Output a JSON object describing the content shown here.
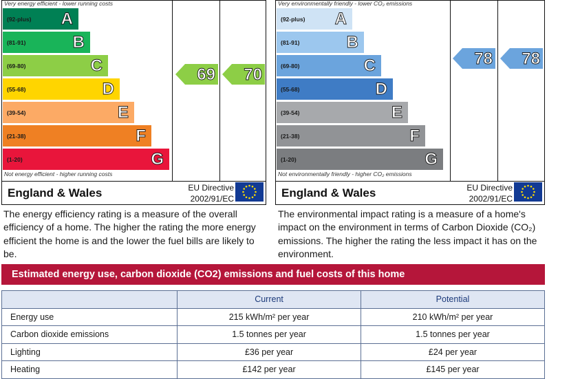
{
  "energy_chart": {
    "top_caption": "Very energy efficient - lower running costs",
    "bottom_caption": "Not energy efficient - higher running costs",
    "bands": [
      {
        "range": "(92-plus)",
        "letter": "A",
        "color": "#008054"
      },
      {
        "range": "(81-91)",
        "letter": "B",
        "color": "#19b459"
      },
      {
        "range": "(69-80)",
        "letter": "C",
        "color": "#8dce46"
      },
      {
        "range": "(55-68)",
        "letter": "D",
        "color": "#ffd500"
      },
      {
        "range": "(39-54)",
        "letter": "E",
        "color": "#fcaa65"
      },
      {
        "range": "(21-38)",
        "letter": "F",
        "color": "#ef8023"
      },
      {
        "range": "(1-20)",
        "letter": "G",
        "color": "#e9153b"
      }
    ],
    "current": {
      "value": "69",
      "band": "C",
      "color": "#8dce46"
    },
    "potential": {
      "value": "70",
      "band": "C",
      "color": "#8dce46"
    },
    "region": "England & Wales",
    "directive_line1": "EU Directive",
    "directive_line2": "2002/91/EC"
  },
  "co2_chart": {
    "top_caption": "Very environmentally friendly - lower CO₂ emissions",
    "bottom_caption": "Not environmentally friendly - higher CO₂ emissions",
    "bands": [
      {
        "range": "(92-plus)",
        "letter": "A",
        "color": "#cfe3f5"
      },
      {
        "range": "(81-91)",
        "letter": "B",
        "color": "#9cc7ee"
      },
      {
        "range": "(69-80)",
        "letter": "C",
        "color": "#6ba4dd"
      },
      {
        "range": "(55-68)",
        "letter": "D",
        "color": "#3f7cc5"
      },
      {
        "range": "(39-54)",
        "letter": "E",
        "color": "#a7a9ac"
      },
      {
        "range": "(21-38)",
        "letter": "F",
        "color": "#919396"
      },
      {
        "range": "(1-20)",
        "letter": "G",
        "color": "#7b7d80"
      }
    ],
    "current": {
      "value": "78",
      "band": "C",
      "color": "#6ba4dd"
    },
    "potential": {
      "value": "78",
      "band": "C",
      "color": "#6ba4dd"
    },
    "region": "England & Wales",
    "directive_line1": "EU Directive",
    "directive_line2": "2002/91/EC"
  },
  "energy_description": "The energy efficiency rating is a measure of the overall efficiency of a home. The higher the rating the more energy efficient the home is and the lower the fuel bills are likely to be.",
  "co2_description": "The environmental impact rating is a measure of a home's impact on the environment in terms of Carbon Dioxide (CO₂) emissions. The higher the rating the less impact it has on the environment.",
  "banner": "Estimated energy use, carbon dioxide (CO2) emissions and fuel costs of this home",
  "costs_table": {
    "headers": [
      "",
      "Current",
      "Potential"
    ],
    "rows": [
      {
        "label": "Energy use",
        "current": "215 kWh/m² per year",
        "potential": "210 kWh/m² per year"
      },
      {
        "label": "Carbon dioxide emissions",
        "current": "1.5 tonnes per year",
        "potential": "1.5 tonnes per year"
      },
      {
        "label": "Lighting",
        "current": "£36 per year",
        "potential": "£24 per year"
      },
      {
        "label": "Heating",
        "current": "£142 per year",
        "potential": "£145 per year"
      }
    ]
  }
}
